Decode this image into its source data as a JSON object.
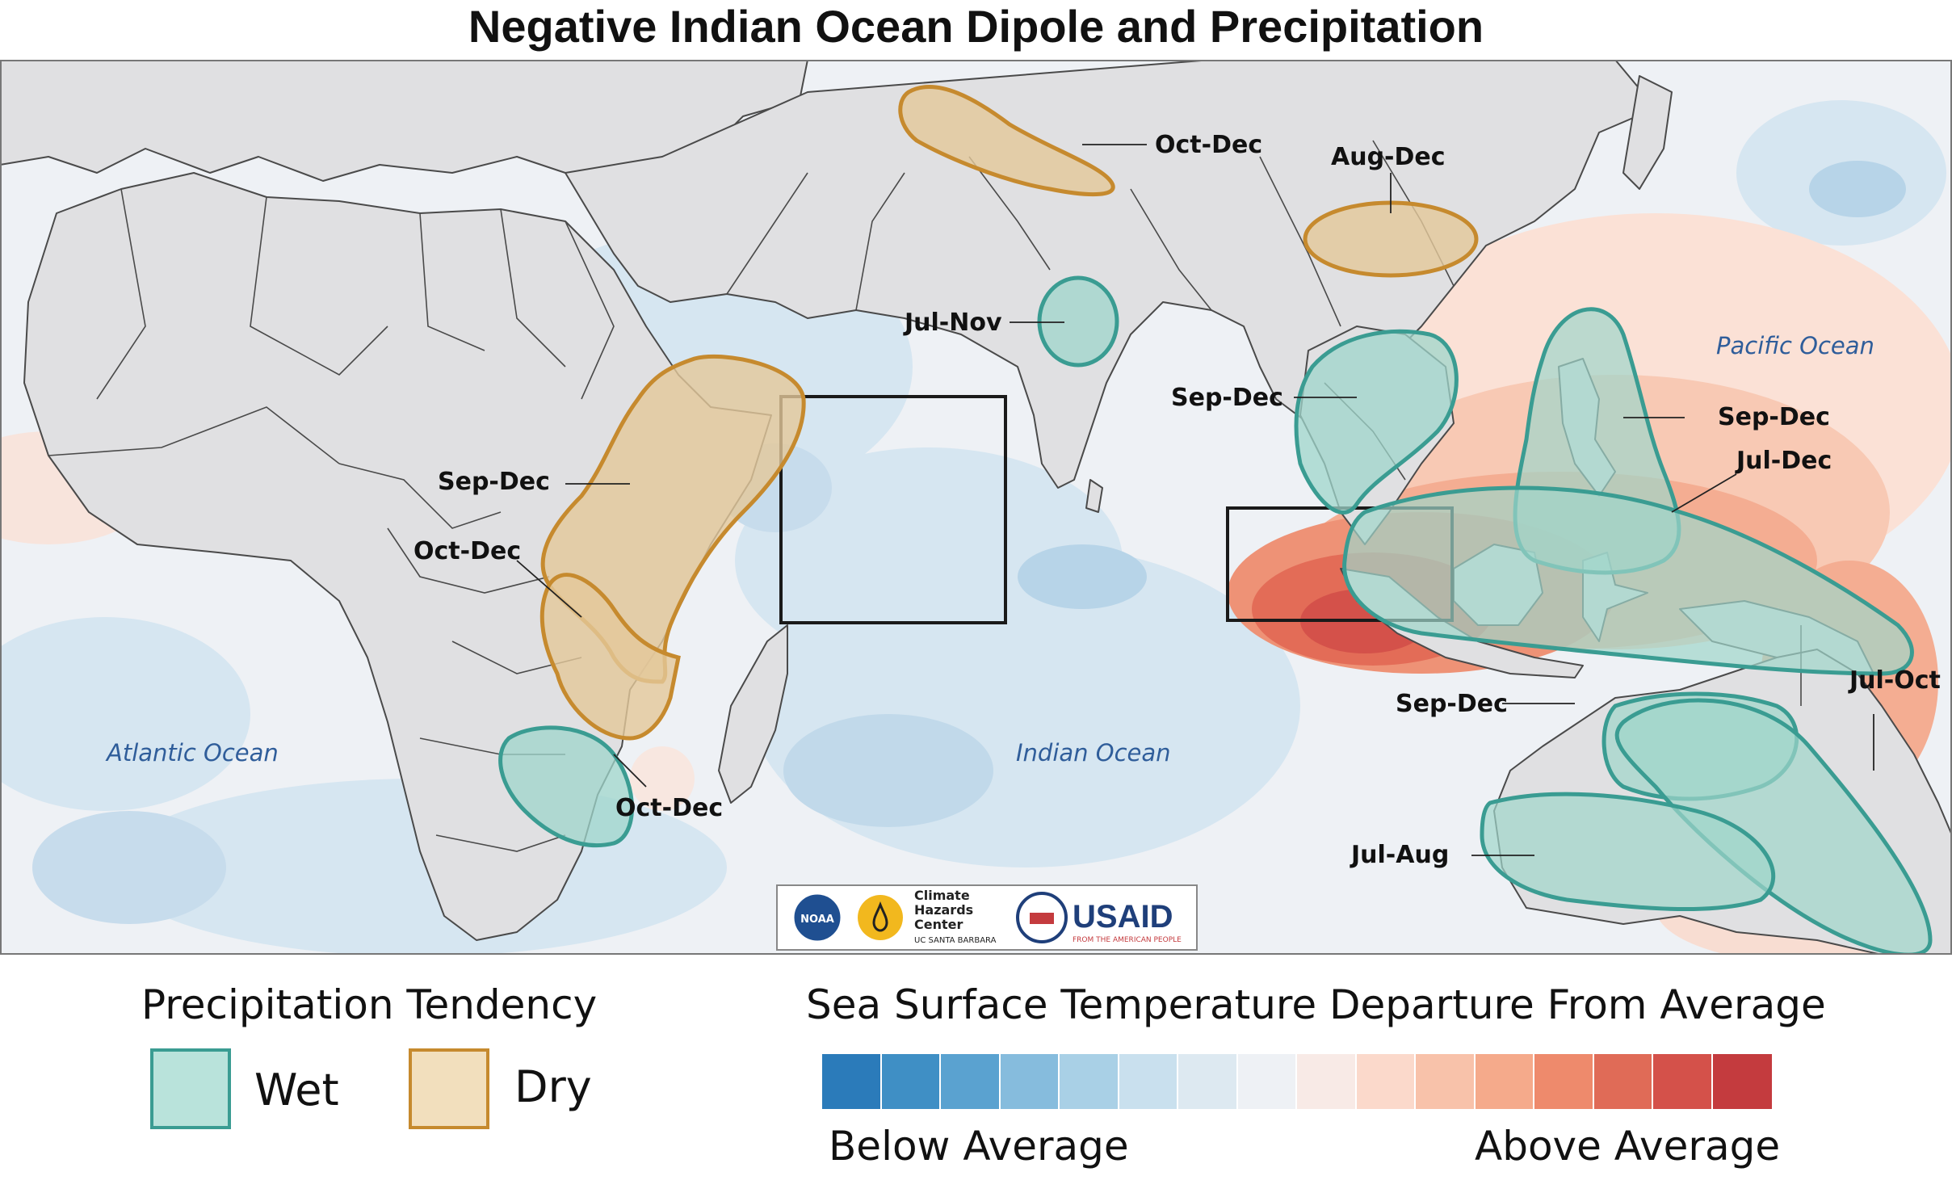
{
  "title": "Negative Indian Ocean Dipole and Precipitation",
  "colors": {
    "ocean_base": "#eef1f5",
    "land": "#e0e0e2",
    "wet_fill": "#9fd6cb",
    "wet_stroke": "#3a9c92",
    "dry_fill": "#e4c89a",
    "dry_stroke": "#c68a2e",
    "box_stroke": "#1a1a1a",
    "ocean_label": "#2f5d9a"
  },
  "map": {
    "ocean_labels": [
      "Atlantic Ocean",
      "Indian Ocean",
      "Pacific Ocean"
    ],
    "regions": [
      {
        "tendency": "dry",
        "label": "Oct-Dec"
      },
      {
        "tendency": "dry",
        "label": "Aug-Dec"
      },
      {
        "tendency": "wet",
        "label": "Jul-Nov"
      },
      {
        "tendency": "wet",
        "label": "Sep-Dec"
      },
      {
        "tendency": "wet",
        "label": "Sep-Dec"
      },
      {
        "tendency": "wet",
        "label": "Jul-Dec"
      },
      {
        "tendency": "dry",
        "label": "Sep-Dec"
      },
      {
        "tendency": "dry",
        "label": "Oct-Dec"
      },
      {
        "tendency": "wet",
        "label": "Oct-Dec"
      },
      {
        "tendency": "wet",
        "label": "Sep-Dec"
      },
      {
        "tendency": "wet",
        "label": "Jul-Oct"
      },
      {
        "tendency": "wet",
        "label": "Jul-Aug"
      }
    ],
    "logos": {
      "noaa": "NOAA",
      "chc_lines": [
        "Climate",
        "Hazards",
        "Center"
      ],
      "chc_sub": "UC SANTA BARBARA",
      "usaid": "USAID",
      "usaid_sub": "FROM THE AMERICAN PEOPLE"
    }
  },
  "legend": {
    "precip_title": "Precipitation Tendency",
    "wet_label": "Wet",
    "dry_label": "Dry",
    "sst_title": "Sea Surface Temperature Departure From Average",
    "below_label": "Below Average",
    "above_label": "Above Average",
    "sst_colors": [
      "#2b7bba",
      "#3f8fc5",
      "#5aa2d0",
      "#86bcdd",
      "#a9d0e6",
      "#c9e0ee",
      "#dde9f1",
      "#eef1f5",
      "#f8eae6",
      "#fbd9cb",
      "#f8c2aa",
      "#f5aa8b",
      "#ee8a6c",
      "#e06b57",
      "#d4514a",
      "#c43b3e"
    ]
  }
}
